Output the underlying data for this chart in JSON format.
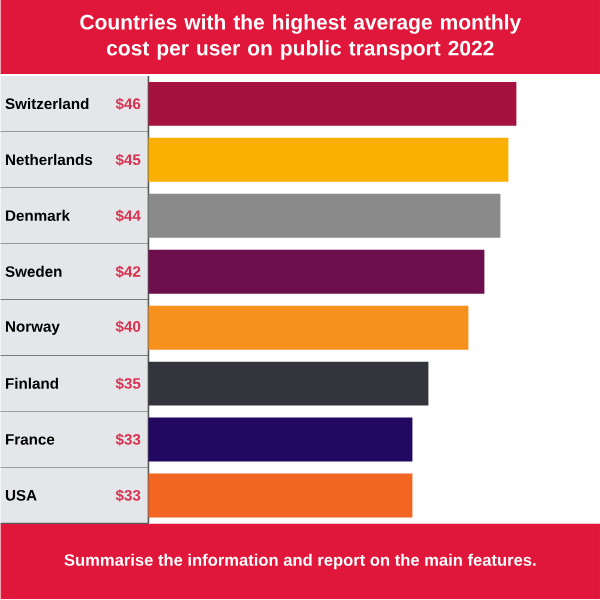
{
  "chart_data": {
    "type": "bar",
    "orientation": "horizontal",
    "title": "Countries with the highest average monthly cost per user on public transport 2022",
    "categories": [
      "Switzerland",
      "Netherlands",
      "Denmark",
      "Sweden",
      "Norway",
      "Finland",
      "France",
      "USA"
    ],
    "values": [
      46,
      45,
      44,
      42,
      40,
      35,
      33,
      33
    ],
    "colors": [
      "#a5123f",
      "#f9b000",
      "#8a8a8a",
      "#6d0f4f",
      "#f6911e",
      "#34343c",
      "#230862",
      "#f26522"
    ],
    "value_labels": [
      "$46",
      "$45",
      "$44",
      "$42",
      "$40",
      "$35",
      "$33",
      "$33"
    ],
    "tick_labels": "y",
    "annotations": [
      "Summarise the information and report on the main features."
    ]
  }
}
